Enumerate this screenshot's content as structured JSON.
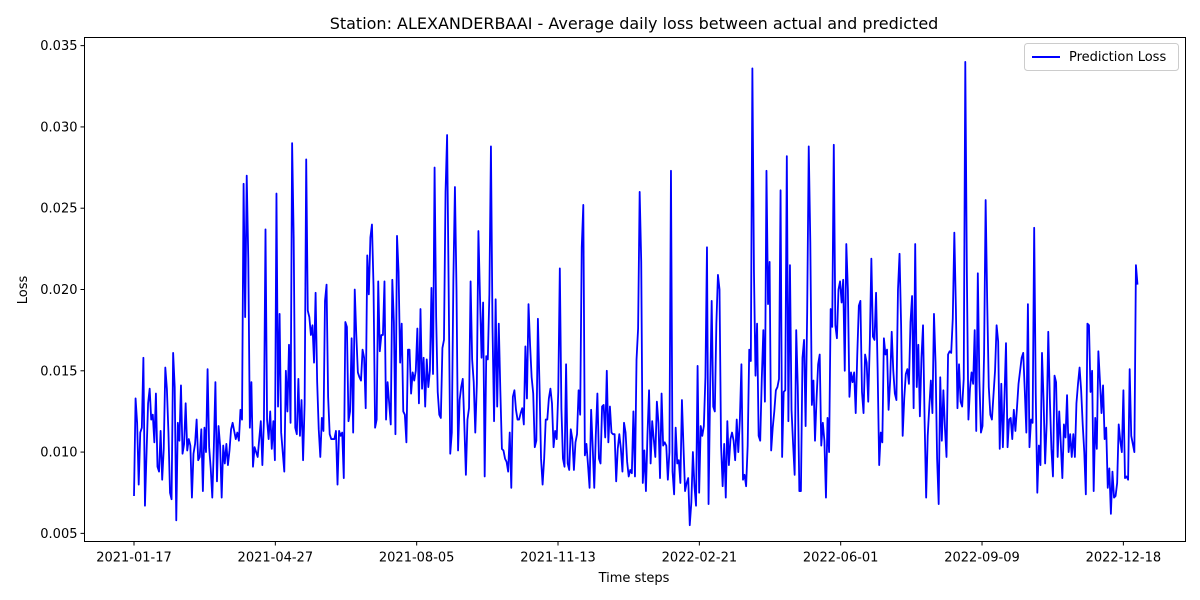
{
  "chart_data": {
    "type": "line",
    "title": "Station: ALEXANDERBAAI - Average daily loss between actual and predicted",
    "xlabel": "Time steps",
    "ylabel": "Loss",
    "x_start": "2021-01-17",
    "x_end": "2022-12-28",
    "x_ticks": [
      "2021-01-17",
      "2021-04-27",
      "2021-08-05",
      "2021-11-13",
      "2022-02-21",
      "2022-06-01",
      "2022-09-09",
      "2022-12-18"
    ],
    "ylim": [
      0.0045,
      0.0355
    ],
    "y_ticks": [
      0.005,
      0.01,
      0.015,
      0.02,
      0.025,
      0.03,
      0.035
    ],
    "y_tick_labels": [
      "0.005",
      "0.010",
      "0.015",
      "0.020",
      "0.025",
      "0.030",
      "0.035"
    ],
    "grid": false,
    "legend_position": "top-right",
    "series": [
      {
        "name": "Prediction Loss",
        "color": "#0000ff",
        "values": [
          0.0073,
          0.0133,
          0.0118,
          0.008,
          0.0112,
          0.0115,
          0.0158,
          0.0067,
          0.0099,
          0.013,
          0.0139,
          0.012,
          0.0123,
          0.0106,
          0.0136,
          0.0091,
          0.0088,
          0.0113,
          0.0083,
          0.0102,
          0.0152,
          0.0139,
          0.0112,
          0.0075,
          0.0071,
          0.0161,
          0.014,
          0.0058,
          0.0118,
          0.0107,
          0.0141,
          0.0099,
          0.0105,
          0.013,
          0.0101,
          0.0108,
          0.0104,
          0.0072,
          0.0099,
          0.0105,
          0.012,
          0.0095,
          0.0097,
          0.0114,
          0.0076,
          0.0115,
          0.01,
          0.0151,
          0.0103,
          0.009,
          0.0072,
          0.0103,
          0.0143,
          0.0082,
          0.0116,
          0.0104,
          0.0072,
          0.0104,
          0.0093,
          0.0105,
          0.0092,
          0.0101,
          0.0114,
          0.0118,
          0.0113,
          0.0108,
          0.0112,
          0.0107,
          0.0126,
          0.012,
          0.0265,
          0.0183,
          0.027,
          0.0219,
          0.0115,
          0.0143,
          0.0091,
          0.0103,
          0.01,
          0.0097,
          0.0108,
          0.0119,
          0.0092,
          0.012,
          0.0237,
          0.012,
          0.0108,
          0.0125,
          0.0102,
          0.0119,
          0.0095,
          0.0259,
          0.0128,
          0.0185,
          0.0112,
          0.01,
          0.0088,
          0.015,
          0.0125,
          0.0166,
          0.0118,
          0.029,
          0.0232,
          0.0115,
          0.0111,
          0.0145,
          0.011,
          0.0132,
          0.0095,
          0.013,
          0.028,
          0.0187,
          0.0183,
          0.0172,
          0.0178,
          0.0155,
          0.0198,
          0.0143,
          0.0114,
          0.0097,
          0.0121,
          0.0113,
          0.0193,
          0.0203,
          0.0134,
          0.0111,
          0.0108,
          0.0108,
          0.0108,
          0.0113,
          0.008,
          0.0113,
          0.011,
          0.0112,
          0.0084,
          0.018,
          0.0177,
          0.0119,
          0.0125,
          0.017,
          0.0112,
          0.02,
          0.0172,
          0.0149,
          0.0146,
          0.0144,
          0.0163,
          0.0158,
          0.0127,
          0.0221,
          0.0197,
          0.0232,
          0.024,
          0.0202,
          0.0115,
          0.012,
          0.0205,
          0.0162,
          0.0172,
          0.0172,
          0.0205,
          0.012,
          0.0143,
          0.013,
          0.0117,
          0.0206,
          0.018,
          0.0111,
          0.0233,
          0.0211,
          0.0155,
          0.0179,
          0.0125,
          0.0123,
          0.0106,
          0.0163,
          0.0163,
          0.0136,
          0.0149,
          0.0144,
          0.015,
          0.0176,
          0.013,
          0.0188,
          0.0139,
          0.0158,
          0.0128,
          0.0157,
          0.014,
          0.015,
          0.0201,
          0.0148,
          0.0275,
          0.0183,
          0.0137,
          0.0123,
          0.0121,
          0.0164,
          0.0169,
          0.026,
          0.0295,
          0.02,
          0.0099,
          0.0112,
          0.0206,
          0.0263,
          0.02,
          0.0101,
          0.0132,
          0.014,
          0.0145,
          0.0117,
          0.0086,
          0.012,
          0.0127,
          0.0205,
          0.0157,
          0.0143,
          0.0112,
          0.0142,
          0.0236,
          0.0196,
          0.0158,
          0.0192,
          0.0085,
          0.0159,
          0.0157,
          0.0197,
          0.0288,
          0.0177,
          0.0119,
          0.0194,
          0.0128,
          0.0179,
          0.0138,
          0.0102,
          0.0101,
          0.0096,
          0.0094,
          0.0088,
          0.0112,
          0.0078,
          0.0134,
          0.0138,
          0.0126,
          0.012,
          0.012,
          0.0124,
          0.0127,
          0.0117,
          0.0165,
          0.0133,
          0.0191,
          0.0166,
          0.0146,
          0.0136,
          0.0103,
          0.0107,
          0.0182,
          0.0142,
          0.0096,
          0.008,
          0.0096,
          0.012,
          0.012,
          0.0133,
          0.0139,
          0.013,
          0.0103,
          0.0113,
          0.0108,
          0.0137,
          0.0213,
          0.0127,
          0.0096,
          0.0091,
          0.0154,
          0.0093,
          0.0089,
          0.0114,
          0.0108,
          0.0089,
          0.0106,
          0.0111,
          0.0138,
          0.0123,
          0.0226,
          0.0252,
          0.0098,
          0.0105,
          0.0092,
          0.0078,
          0.0126,
          0.0103,
          0.0078,
          0.0111,
          0.0136,
          0.0096,
          0.0093,
          0.0128,
          0.0129,
          0.0109,
          0.015,
          0.0106,
          0.0128,
          0.0112,
          0.0111,
          0.0111,
          0.0082,
          0.0102,
          0.0111,
          0.0102,
          0.0088,
          0.0118,
          0.0112,
          0.0094,
          0.0085,
          0.0089,
          0.0087,
          0.0125,
          0.0085,
          0.0157,
          0.0176,
          0.026,
          0.0217,
          0.0081,
          0.0101,
          0.0076,
          0.0111,
          0.0138,
          0.0093,
          0.0119,
          0.0108,
          0.0097,
          0.0131,
          0.0118,
          0.0084,
          0.0136,
          0.0104,
          0.0106,
          0.0104,
          0.0083,
          0.01,
          0.0273,
          0.0088,
          0.0074,
          0.0115,
          0.0093,
          0.0095,
          0.0081,
          0.0132,
          0.0103,
          0.0076,
          0.0081,
          0.0084,
          0.0055,
          0.0069,
          0.01,
          0.0079,
          0.0067,
          0.0153,
          0.0075,
          0.0116,
          0.011,
          0.0116,
          0.0146,
          0.0226,
          0.0068,
          0.0137,
          0.0193,
          0.0128,
          0.0125,
          0.0179,
          0.0209,
          0.02,
          0.0104,
          0.0079,
          0.0105,
          0.0072,
          0.0119,
          0.0092,
          0.0108,
          0.0112,
          0.0107,
          0.0095,
          0.012,
          0.01,
          0.012,
          0.0154,
          0.0083,
          0.0086,
          0.0079,
          0.0104,
          0.0163,
          0.0156,
          0.0336,
          0.0211,
          0.0147,
          0.0179,
          0.011,
          0.0107,
          0.0145,
          0.0175,
          0.0131,
          0.0273,
          0.0191,
          0.0217,
          0.0101,
          0.0115,
          0.0125,
          0.0138,
          0.014,
          0.0145,
          0.0261,
          0.0097,
          0.0137,
          0.0138,
          0.0282,
          0.0119,
          0.0215,
          0.0126,
          0.0105,
          0.0086,
          0.0175,
          0.014,
          0.0076,
          0.0076,
          0.0158,
          0.0169,
          0.0116,
          0.0186,
          0.0288,
          0.0229,
          0.0129,
          0.0144,
          0.0107,
          0.0133,
          0.0154,
          0.016,
          0.0104,
          0.0118,
          0.0107,
          0.0072,
          0.0121,
          0.01,
          0.0188,
          0.0177,
          0.0289,
          0.0178,
          0.017,
          0.02,
          0.0205,
          0.0192,
          0.0206,
          0.015,
          0.0228,
          0.02,
          0.0134,
          0.0149,
          0.0143,
          0.0149,
          0.0124,
          0.016,
          0.019,
          0.0193,
          0.0137,
          0.0124,
          0.016,
          0.0155,
          0.0131,
          0.0167,
          0.0219,
          0.0171,
          0.0169,
          0.0198,
          0.0151,
          0.0092,
          0.0112,
          0.0106,
          0.017,
          0.016,
          0.0163,
          0.0126,
          0.0144,
          0.0174,
          0.015,
          0.0136,
          0.0132,
          0.02,
          0.0222,
          0.0178,
          0.011,
          0.0133,
          0.0148,
          0.0151,
          0.0142,
          0.018,
          0.0196,
          0.0127,
          0.0228,
          0.014,
          0.0166,
          0.0122,
          0.0158,
          0.0178,
          0.012,
          0.0072,
          0.011,
          0.0128,
          0.0144,
          0.0124,
          0.0185,
          0.0155,
          0.0096,
          0.0068,
          0.0146,
          0.0107,
          0.0138,
          0.0115,
          0.0097,
          0.016,
          0.0162,
          0.0161,
          0.0182,
          0.0235,
          0.0188,
          0.0127,
          0.0154,
          0.0131,
          0.0128,
          0.0145,
          0.034,
          0.021,
          0.012,
          0.0139,
          0.0149,
          0.0142,
          0.0175,
          0.0113,
          0.021,
          0.0144,
          0.0112,
          0.0116,
          0.016,
          0.0255,
          0.0192,
          0.014,
          0.0123,
          0.012,
          0.0135,
          0.015,
          0.0178,
          0.0168,
          0.0102,
          0.0142,
          0.0103,
          0.0133,
          0.0167,
          0.0103,
          0.012,
          0.0121,
          0.0108,
          0.0126,
          0.0113,
          0.0127,
          0.0142,
          0.015,
          0.0158,
          0.0161,
          0.0138,
          0.0112,
          0.0191,
          0.0103,
          0.012,
          0.0118,
          0.0238,
          0.0136,
          0.0075,
          0.0104,
          0.0092,
          0.0161,
          0.0132,
          0.0093,
          0.0118,
          0.0174,
          0.0133,
          0.0102,
          0.0085,
          0.0147,
          0.0143,
          0.0097,
          0.0125,
          0.0105,
          0.0084,
          0.0117,
          0.0109,
          0.0135,
          0.01,
          0.0111,
          0.0097,
          0.0111,
          0.0097,
          0.013,
          0.0142,
          0.0152,
          0.0138,
          0.0117,
          0.01,
          0.0074,
          0.0179,
          0.0178,
          0.0137,
          0.015,
          0.0076,
          0.0121,
          0.0102,
          0.0162,
          0.0144,
          0.0124,
          0.0141,
          0.0108,
          0.0115,
          0.0078,
          0.009,
          0.0062,
          0.0088,
          0.0072,
          0.0073,
          0.0081,
          0.0117,
          0.0107,
          0.01,
          0.0138,
          0.0084,
          0.0085,
          0.0083,
          0.0151,
          0.011,
          0.0105,
          0.01,
          0.0215,
          0.0203
        ]
      }
    ]
  }
}
